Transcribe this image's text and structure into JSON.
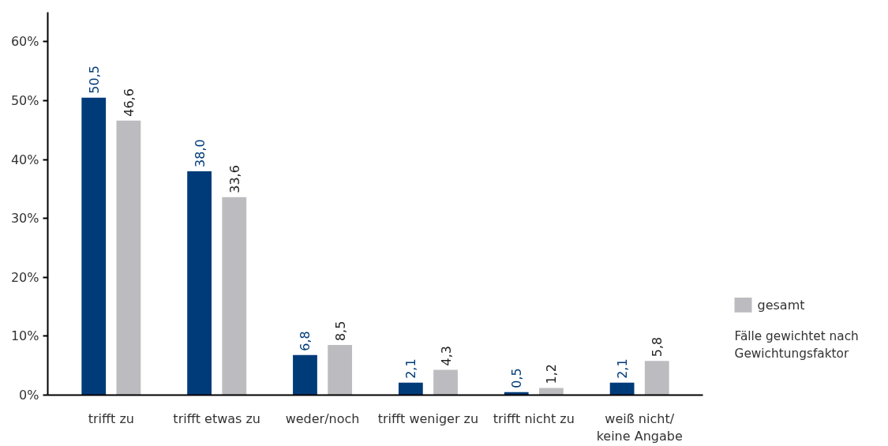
{
  "chart_data": {
    "type": "bar",
    "categories": [
      "trifft zu",
      "trifft etwas zu",
      "weder/noch",
      "trifft weniger zu",
      "trifft nicht zu",
      "weiß nicht/\nkeine Angabe"
    ],
    "series": [
      {
        "color": "#003b79",
        "values": [
          50.5,
          38.0,
          6.8,
          2.1,
          0.5,
          2.1
        ],
        "value_labels": [
          "50,5",
          "38,0",
          "6,8",
          "2,1",
          "0,5",
          "2,1"
        ]
      },
      {
        "name": "gesamt",
        "color": "#bcbcc0",
        "values": [
          46.6,
          33.6,
          8.5,
          4.3,
          1.2,
          5.8
        ],
        "value_labels": [
          "46,6",
          "33,6",
          "8,5",
          "4,3",
          "1,2",
          "5,8"
        ]
      }
    ],
    "ylim": [
      0,
      65
    ],
    "yticks": [
      {
        "value": 0,
        "label": "0%"
      },
      {
        "value": 10,
        "label": "10%"
      },
      {
        "value": 20,
        "label": "20%"
      },
      {
        "value": 30,
        "label": "30%"
      },
      {
        "value": 40,
        "label": "40%"
      },
      {
        "value": 50,
        "label": "50%"
      },
      {
        "value": 60,
        "label": "60%"
      }
    ],
    "grid": false,
    "legend": "right",
    "annotations": [
      "Fälle gewichtet nach\nGewichtungsfaktor"
    ]
  }
}
